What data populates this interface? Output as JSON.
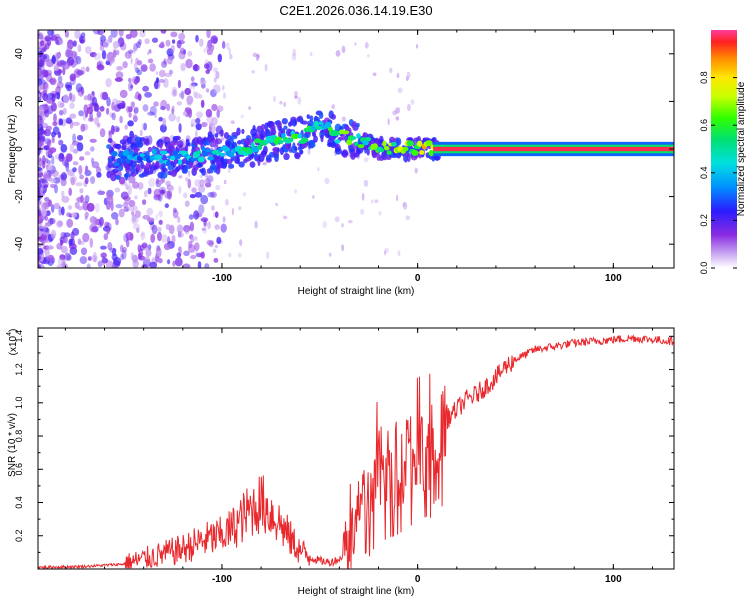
{
  "title": "C2E1.2026.036.14.19.E30",
  "chart_data": [
    {
      "type": "heatmap",
      "title": "C2E1.2026.036.14.19.E30",
      "xlabel": "Height of straight line (km)",
      "ylabel": "Frequency (Hz)",
      "xlim": [
        -194,
        131
      ],
      "ylim": [
        -50,
        50
      ],
      "xticks": [
        -100,
        0,
        100
      ],
      "xtick_labels": [
        "-100",
        "0",
        "100"
      ],
      "yticks": [
        -40,
        -20,
        0,
        20,
        40
      ],
      "ytick_labels": [
        "-40",
        "-20",
        "0",
        "20",
        "40"
      ],
      "colorbar": {
        "label": "Normalized spectral amplitude",
        "range": [
          0,
          1
        ],
        "ticks": [
          0.0,
          0.2,
          0.4,
          0.6,
          0.8
        ],
        "tick_labels": [
          "0.0",
          "0.2",
          "0.4",
          "0.6",
          "0.8"
        ]
      },
      "ridge": {
        "description_points": [
          {
            "x": -150,
            "freq": -4,
            "amp": 0.35
          },
          {
            "x": -120,
            "freq": -3,
            "amp": 0.4
          },
          {
            "x": -100,
            "freq": -1,
            "amp": 0.45
          },
          {
            "x": -80,
            "freq": 2,
            "amp": 0.5
          },
          {
            "x": -60,
            "freq": 5,
            "amp": 0.55
          },
          {
            "x": -48,
            "freq": 10,
            "amp": 0.5
          },
          {
            "x": -40,
            "freq": 5,
            "amp": 0.6
          },
          {
            "x": -30,
            "freq": 4,
            "amp": 0.55
          },
          {
            "x": -20,
            "freq": 0,
            "amp": 0.6
          },
          {
            "x": -5,
            "freq": 0,
            "amp": 0.7
          },
          {
            "x": 10,
            "freq": 0,
            "amp": 0.95
          },
          {
            "x": 60,
            "freq": 0,
            "amp": 0.95
          },
          {
            "x": 131,
            "freq": 0,
            "amp": 0.95
          }
        ]
      }
    },
    {
      "type": "line",
      "xlabel": "Height of straight line (km)",
      "ylabel": "SNR (10 * v/v)",
      "y_scale_label": "(x10",
      "y_scale_exponent": "4",
      "xlim": [
        -194,
        131
      ],
      "ylim": [
        0,
        1.45
      ],
      "xticks": [
        -100,
        0,
        100
      ],
      "xtick_labels": [
        "-100",
        "0",
        "100"
      ],
      "yticks": [
        0.2,
        0.4,
        0.6,
        0.8,
        1.0,
        1.2,
        1.4
      ],
      "ytick_labels": [
        "0.2",
        "0.4",
        "0.6",
        "0.8",
        "1.0",
        "1.2",
        "1.4"
      ],
      "color": "#e8282c",
      "series": [
        {
          "name": "SNR",
          "x": [
            -194,
            -170,
            -150,
            -140,
            -130,
            -120,
            -110,
            -100,
            -95,
            -90,
            -85,
            -80,
            -75,
            -70,
            -65,
            -60,
            -55,
            -50,
            -45,
            -40,
            -35,
            -32,
            -28,
            -25,
            -22,
            -20,
            -15,
            -10,
            -5,
            0,
            5,
            10,
            15,
            20,
            25,
            30,
            35,
            40,
            45,
            50,
            55,
            60,
            70,
            80,
            90,
            100,
            110,
            120,
            131
          ],
          "y": [
            0.01,
            0.015,
            0.03,
            0.06,
            0.09,
            0.12,
            0.17,
            0.2,
            0.24,
            0.3,
            0.36,
            0.4,
            0.34,
            0.27,
            0.18,
            0.11,
            0.07,
            0.05,
            0.04,
            0.06,
            0.14,
            0.24,
            0.4,
            0.5,
            0.56,
            0.58,
            0.62,
            0.64,
            0.68,
            0.72,
            0.75,
            0.72,
            0.9,
            0.96,
            1.02,
            1.05,
            1.1,
            1.15,
            1.22,
            1.26,
            1.29,
            1.32,
            1.34,
            1.36,
            1.37,
            1.38,
            1.39,
            1.38,
            1.37
          ]
        }
      ]
    }
  ]
}
